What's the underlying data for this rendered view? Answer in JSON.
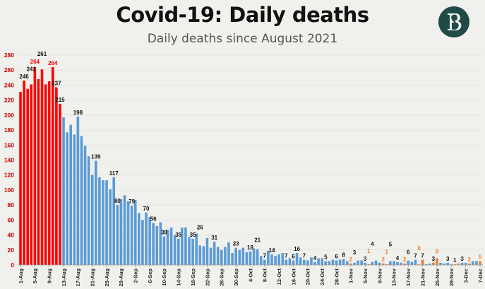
{
  "chart_data": {
    "type": "bar",
    "title": "Covid-19: Daily deaths",
    "subtitle": "Daily deaths since August 2021",
    "xlabel": "",
    "ylabel": "",
    "ylim": [
      0,
      280
    ],
    "y_ticks": [
      0,
      20,
      40,
      60,
      80,
      100,
      120,
      140,
      160,
      180,
      200,
      220,
      240,
      260,
      280
    ],
    "x_tick_labels": [
      "1-Aug",
      "5-Aug",
      "9-Aug",
      "13-Aug",
      "17-Aug",
      "21-Aug",
      "25-Aug",
      "29-Aug",
      "2-Sep",
      "6-Sep",
      "10-Sep",
      "14-Sep",
      "18-Sep",
      "22-Sep",
      "26-Sep",
      "30-Sep",
      "4-Oct",
      "8-Oct",
      "12-Oct",
      "16-Oct",
      "20-Oct",
      "24-Oct",
      "28-Oct",
      "1-Nov",
      "5-Nov",
      "9-Nov",
      "13-Nov",
      "17-Nov",
      "21-Nov",
      "25-Nov",
      "29-Nov",
      "3-Dec",
      "7-Dec"
    ],
    "x_tick_every_n_days": 4,
    "grid": true,
    "values": [
      231,
      246,
      235,
      241,
      264,
      248,
      261,
      241,
      245,
      264,
      237,
      215,
      197,
      177,
      187,
      174,
      198,
      172,
      159,
      145,
      120,
      139,
      117,
      113,
      113,
      101,
      117,
      80,
      88,
      93,
      85,
      79,
      87,
      69,
      60,
      70,
      64,
      56,
      52,
      57,
      38,
      47,
      50,
      40,
      35,
      50,
      50,
      37,
      35,
      42,
      26,
      25,
      36,
      23,
      31,
      24,
      20,
      24,
      30,
      16,
      23,
      20,
      23,
      17,
      18,
      22,
      21,
      12,
      7,
      19,
      14,
      12,
      14,
      16,
      7,
      9,
      6,
      16,
      10,
      7,
      6,
      10,
      4,
      9,
      9,
      5,
      5,
      7,
      6,
      7,
      8,
      5,
      2,
      3,
      6,
      6,
      3,
      1,
      4,
      6,
      3,
      2,
      1,
      5,
      5,
      4,
      3,
      2,
      6,
      4,
      7,
      0,
      7,
      1,
      2,
      3,
      9,
      3,
      2,
      3,
      1,
      1,
      2,
      3,
      3,
      2,
      5,
      5,
      5
    ],
    "red_bar_count": 12,
    "orange_bar_indices": [
      92,
      97,
      101,
      102,
      107,
      111,
      112,
      115,
      116,
      121,
      122,
      125,
      128
    ],
    "data_labels": [
      {
        "i": 1,
        "text": "246",
        "color": "black"
      },
      {
        "i": 3,
        "text": "241",
        "color": "black"
      },
      {
        "i": 4,
        "text": "264",
        "color": "red"
      },
      {
        "i": 6,
        "text": "261",
        "color": "black"
      },
      {
        "i": 9,
        "text": "264",
        "color": "red"
      },
      {
        "i": 10,
        "text": "237",
        "color": "black"
      },
      {
        "i": 11,
        "text": "215",
        "color": "black"
      },
      {
        "i": 16,
        "text": "198",
        "color": "black"
      },
      {
        "i": 21,
        "text": "139",
        "color": "black"
      },
      {
        "i": 26,
        "text": "117",
        "color": "black"
      },
      {
        "i": 27,
        "text": "80",
        "color": "black"
      },
      {
        "i": 31,
        "text": "79",
        "color": "black"
      },
      {
        "i": 35,
        "text": "70",
        "color": "black"
      },
      {
        "i": 37,
        "text": "56",
        "color": "black"
      },
      {
        "i": 40,
        "text": "38",
        "color": "black"
      },
      {
        "i": 44,
        "text": "35",
        "color": "black"
      },
      {
        "i": 48,
        "text": "35",
        "color": "black"
      },
      {
        "i": 50,
        "text": "26",
        "color": "black"
      },
      {
        "i": 54,
        "text": "31",
        "color": "black"
      },
      {
        "i": 60,
        "text": "23",
        "color": "black"
      },
      {
        "i": 64,
        "text": "18",
        "color": "black"
      },
      {
        "i": 66,
        "text": "21",
        "color": "black"
      },
      {
        "i": 68,
        "text": "7",
        "color": "black"
      },
      {
        "i": 70,
        "text": "14",
        "color": "black"
      },
      {
        "i": 74,
        "text": "7",
        "color": "black"
      },
      {
        "i": 76,
        "text": "6",
        "color": "black"
      },
      {
        "i": 77,
        "text": "16",
        "color": "black"
      },
      {
        "i": 79,
        "text": "7",
        "color": "black"
      },
      {
        "i": 82,
        "text": "4",
        "color": "black"
      },
      {
        "i": 85,
        "text": "5",
        "color": "black"
      },
      {
        "i": 88,
        "text": "6",
        "color": "black"
      },
      {
        "i": 90,
        "text": "8",
        "color": "black"
      },
      {
        "i": 92,
        "text": "2",
        "color": "orange"
      },
      {
        "i": 93,
        "text": "3",
        "color": "black"
      },
      {
        "i": 96,
        "text": "3",
        "color": "black"
      },
      {
        "i": 97,
        "text": "1",
        "color": "orange"
      },
      {
        "i": 98,
        "text": "4",
        "color": "black"
      },
      {
        "i": 101,
        "text": "2",
        "color": "orange"
      },
      {
        "i": 102,
        "text": "1",
        "color": "orange"
      },
      {
        "i": 103,
        "text": "5",
        "color": "black"
      },
      {
        "i": 105,
        "text": "4",
        "color": "black"
      },
      {
        "i": 107,
        "text": "2",
        "color": "orange"
      },
      {
        "i": 108,
        "text": "6",
        "color": "black"
      },
      {
        "i": 110,
        "text": "7",
        "color": "black"
      },
      {
        "i": 111,
        "text": "0",
        "color": "orange"
      },
      {
        "i": 112,
        "text": "7",
        "color": "black"
      },
      {
        "i": 115,
        "text": "3",
        "color": "black"
      },
      {
        "i": 116,
        "text": "9",
        "color": "orange"
      },
      {
        "i": 119,
        "text": "3",
        "color": "black"
      },
      {
        "i": 121,
        "text": "1",
        "color": "black"
      },
      {
        "i": 123,
        "text": "3",
        "color": "black"
      },
      {
        "i": 125,
        "text": "2",
        "color": "orange"
      },
      {
        "i": 128,
        "text": "5",
        "color": "orange"
      }
    ],
    "colors": {
      "red": "#ff0000",
      "blue": "#5b9bd5",
      "orange": "#ed7d31",
      "black": "#111111",
      "axis_label": "#c00000"
    }
  },
  "logo": {
    "text": "SB",
    "color": "#1f4a47"
  }
}
